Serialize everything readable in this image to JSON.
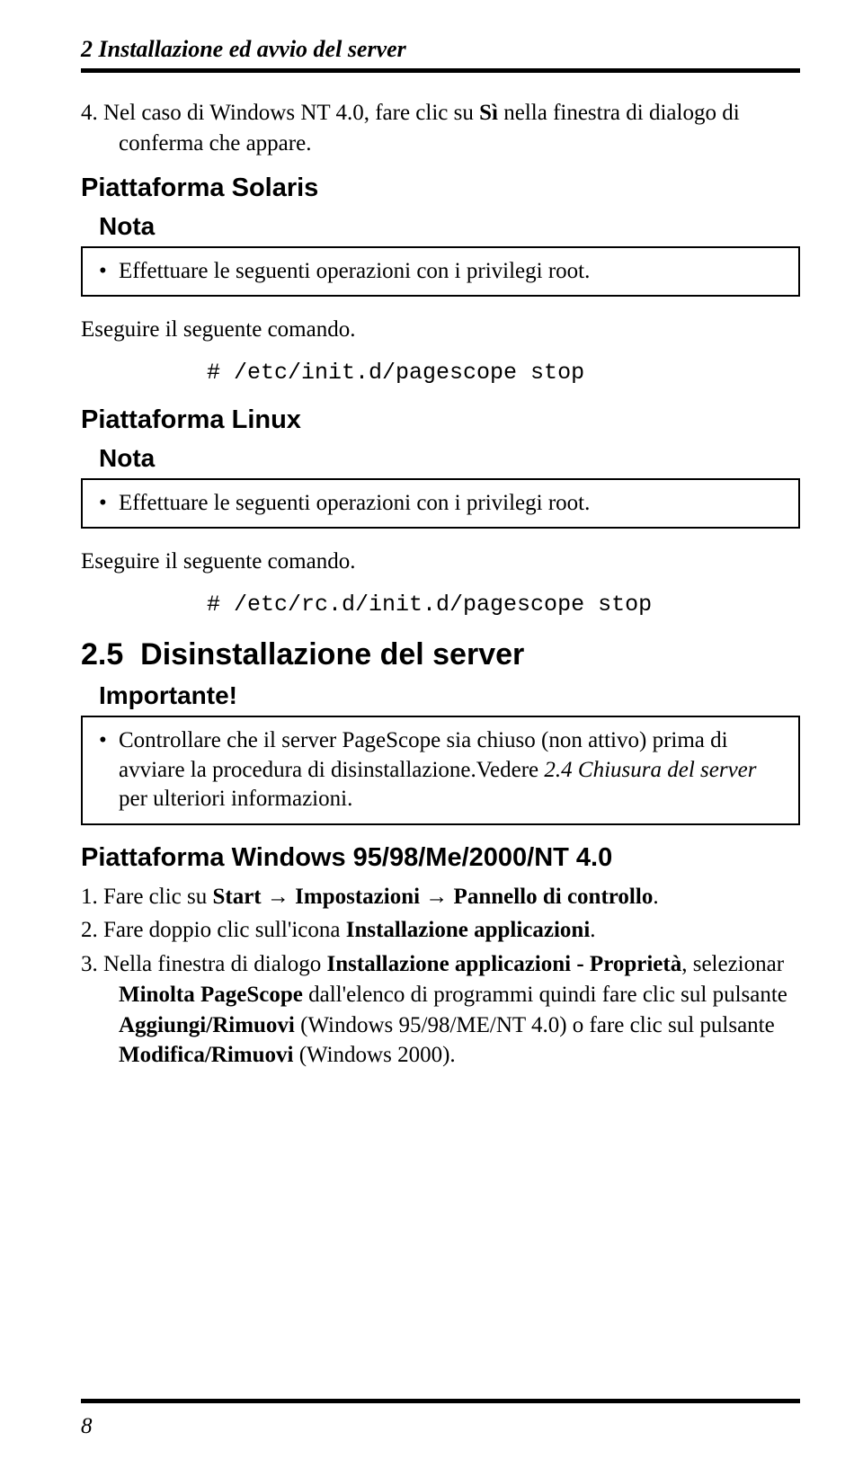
{
  "header": {
    "chapter_title": "2 Installazione ed avvio del server"
  },
  "intro": {
    "step4_prefix": "4.   Nel caso di Windows NT 4.0, fare clic su ",
    "step4_bold": "Sì",
    "step4_suffix": " nella finestra di dialogo di conferma che appare."
  },
  "solaris": {
    "heading": "Piattaforma Solaris",
    "note_label": "Nota",
    "note_text": "Effettuare le seguenti operazioni con i privilegi root.",
    "exec_text": "Eseguire il seguente comando.",
    "command": "# /etc/init.d/pagescope stop"
  },
  "linux": {
    "heading": "Piattaforma Linux",
    "note_label": "Nota",
    "note_text": "Effettuare le seguenti operazioni con i privilegi root.",
    "exec_text": "Eseguire il seguente comando.",
    "command": "# /etc/rc.d/init.d/pagescope stop"
  },
  "section25": {
    "number": "2.5",
    "title": "Disinstallazione del server",
    "important_label": "Importante!",
    "important_text_1": "Controllare che il server PageScope sia chiuso (non attivo) prima di avviare la procedura di disinstallazione.Vedere ",
    "important_italic": "2.4 Chiusura del server",
    "important_text_2": " per ulteriori informazioni."
  },
  "windows": {
    "heading": "Piattaforma Windows 95/98/Me/2000/NT 4.0",
    "step1_a": "1.   Fare clic su ",
    "step1_b": "Start",
    "step1_c": " → ",
    "step1_d": "Impostazioni",
    "step1_e": " → ",
    "step1_f": "Pannello di controllo",
    "step1_g": ".",
    "step2_a": "2.   Fare doppio clic sull'icona ",
    "step2_b": "Installazione applicazioni",
    "step2_c": ".",
    "step3_a": "3.   Nella finestra di dialogo ",
    "step3_b": "Installazione applicazioni - Proprietà",
    "step3_c": ", selezionar ",
    "step3_d": "Minolta PageScope",
    "step3_e": " dall'elenco di programmi quindi fare clic sul pulsante ",
    "step3_f": "Aggiungi/Rimuovi",
    "step3_g": " (Windows 95/98/ME/NT 4.0) o fare clic sul pulsante ",
    "step3_h": "Modifica/Rimuovi",
    "step3_i": " (Windows 2000)."
  },
  "footer": {
    "page_number": "8"
  }
}
